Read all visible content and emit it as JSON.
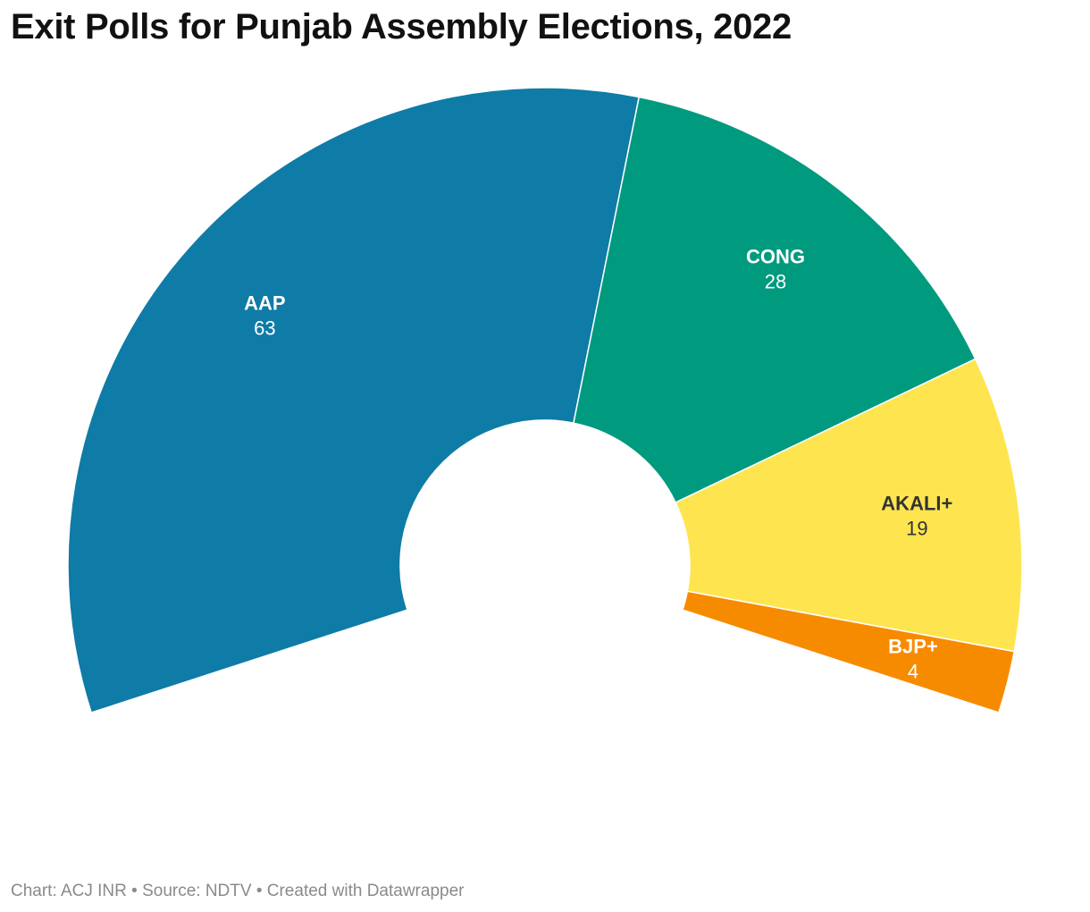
{
  "title": "Exit Polls for Punjab Assembly Elections, 2022",
  "footer": {
    "text": "Chart: ACJ INR • Source: NDTV • Created with Datawrapper"
  },
  "chart_data": {
    "type": "pie",
    "variant": "semi-donut",
    "title": "Exit Polls for Punjab Assembly Elections, 2022",
    "slices": [
      {
        "label": "AAP",
        "value": 63,
        "color": "#0f7ba7",
        "text_color": "#ffffff"
      },
      {
        "label": "CONG",
        "value": 28,
        "color": "#009a7e",
        "text_color": "#ffffff"
      },
      {
        "label": "AKALI+",
        "value": 19,
        "color": "#fee54f",
        "text_color": "#333333"
      },
      {
        "label": "BJP+",
        "value": 4,
        "color": "#f78b00",
        "text_color": "#ffffff"
      }
    ]
  }
}
